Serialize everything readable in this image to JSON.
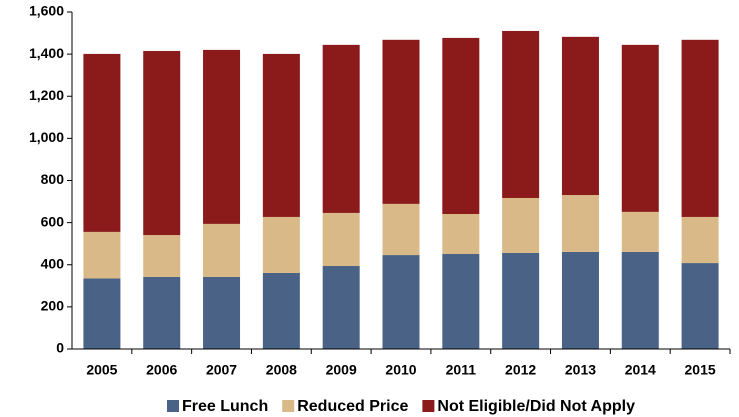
{
  "chart_data": {
    "type": "stacked-bar",
    "categories": [
      "2005",
      "2006",
      "2007",
      "2008",
      "2009",
      "2010",
      "2011",
      "2012",
      "2013",
      "2014",
      "2015"
    ],
    "series": [
      {
        "name": "Free Lunch",
        "color": "#4a6285",
        "values": [
          335,
          342,
          342,
          361,
          394,
          446,
          451,
          456,
          461,
          461,
          408
        ]
      },
      {
        "name": "Reduced Price",
        "color": "#d9b987",
        "values": [
          221,
          199,
          252,
          266,
          252,
          243,
          190,
          261,
          270,
          190,
          219
        ]
      },
      {
        "name": "Not Eligible/Did Not Apply",
        "color": "#8b1a1a",
        "values": [
          845,
          874,
          826,
          774,
          798,
          779,
          836,
          793,
          751,
          793,
          841
        ]
      }
    ],
    "ylim": [
      0,
      1600
    ],
    "yticks": [
      0,
      200,
      400,
      600,
      800,
      {
        "value": 1000,
        "label": "1,000"
      },
      {
        "value": 1200,
        "label": "1,200"
      },
      {
        "value": 1400,
        "label": "1,400"
      },
      {
        "value": 1600,
        "label": "1,600"
      }
    ],
    "grid": false,
    "legend": "bottom"
  }
}
